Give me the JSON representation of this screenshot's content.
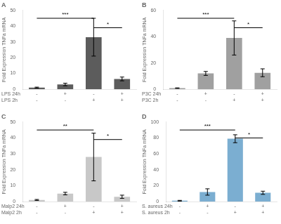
{
  "chart_data": [
    {
      "type": "bar",
      "title": "A",
      "ylabel": "Fold Expression TNFa mRNA",
      "xlabel": [
        "LPS 24h",
        "LPS 2h"
      ],
      "categories": [
        [
          "-",
          "-"
        ],
        [
          "+",
          "-"
        ],
        [
          "-",
          "+"
        ],
        [
          "+",
          "+"
        ]
      ],
      "values": [
        1,
        3,
        33,
        6.5
      ],
      "errors": [
        0.3,
        0.8,
        12,
        1.2
      ],
      "color": "#5c5c5c",
      "ylim": [
        0,
        50
      ],
      "yticks": [
        0,
        10,
        20,
        30,
        40,
        50
      ],
      "grid": false,
      "annotations": [
        {
          "text": "***",
          "between": [
            0,
            2
          ],
          "y": 45
        },
        {
          "text": "*",
          "between": [
            2,
            3
          ],
          "y": 39
        }
      ]
    },
    {
      "type": "bar",
      "title": "B",
      "ylabel": "Fold Expression TNFa mRNA",
      "xlabel": [
        "P3C 24h",
        "P3C 2h"
      ],
      "categories": [
        [
          "-",
          "-"
        ],
        [
          "+",
          "-"
        ],
        [
          "-",
          "+"
        ],
        [
          "+",
          "+"
        ]
      ],
      "values": [
        0.8,
        12,
        39,
        12.5
      ],
      "errors": [
        0.2,
        1.5,
        13,
        3
      ],
      "color": "#a0a0a0",
      "ylim": [
        0,
        60
      ],
      "yticks": [
        0,
        20,
        40,
        60
      ],
      "grid": false,
      "annotations": [
        {
          "text": "***",
          "between": [
            0,
            2
          ],
          "y": 54
        },
        {
          "text": "*",
          "between": [
            2,
            3
          ],
          "y": 46.8
        }
      ]
    },
    {
      "type": "bar",
      "title": "C",
      "ylabel": "Fold Expression TNFa mRNA",
      "xlabel": [
        "Malp2 24h",
        "Malp2 2h"
      ],
      "categories": [
        [
          "-",
          "-"
        ],
        [
          "+",
          "-"
        ],
        [
          "-",
          "+"
        ],
        [
          "+",
          "+"
        ]
      ],
      "values": [
        1,
        5,
        28,
        3
      ],
      "errors": [
        0.3,
        0.8,
        15,
        1
      ],
      "color": "#c8c8c8",
      "ylim": [
        0,
        50
      ],
      "yticks": [
        0,
        10,
        20,
        30,
        40,
        50
      ],
      "grid": false,
      "annotations": [
        {
          "text": "**",
          "between": [
            0,
            2
          ],
          "y": 45
        },
        {
          "text": "*",
          "between": [
            2,
            3
          ],
          "y": 39
        }
      ]
    },
    {
      "type": "bar",
      "title": "D",
      "ylabel": "Fold Expression TNFa mRNA",
      "xlabel": [
        "S. aureus 24h",
        "S. aureus 2h"
      ],
      "categories": [
        [
          "-",
          "-"
        ],
        [
          "+",
          "-"
        ],
        [
          "-",
          "+"
        ],
        [
          "+",
          "+"
        ]
      ],
      "values": [
        1,
        12,
        79,
        11
      ],
      "errors": [
        0.5,
        4,
        5,
        2
      ],
      "color": "#7baed1",
      "ylim": [
        0,
        100
      ],
      "yticks": [
        0,
        20,
        40,
        60,
        80,
        100
      ],
      "grid": false,
      "annotations": [
        {
          "text": "***",
          "between": [
            0,
            2
          ],
          "y": 90
        },
        {
          "text": "*",
          "between": [
            2,
            3
          ],
          "y": 80
        }
      ]
    }
  ]
}
